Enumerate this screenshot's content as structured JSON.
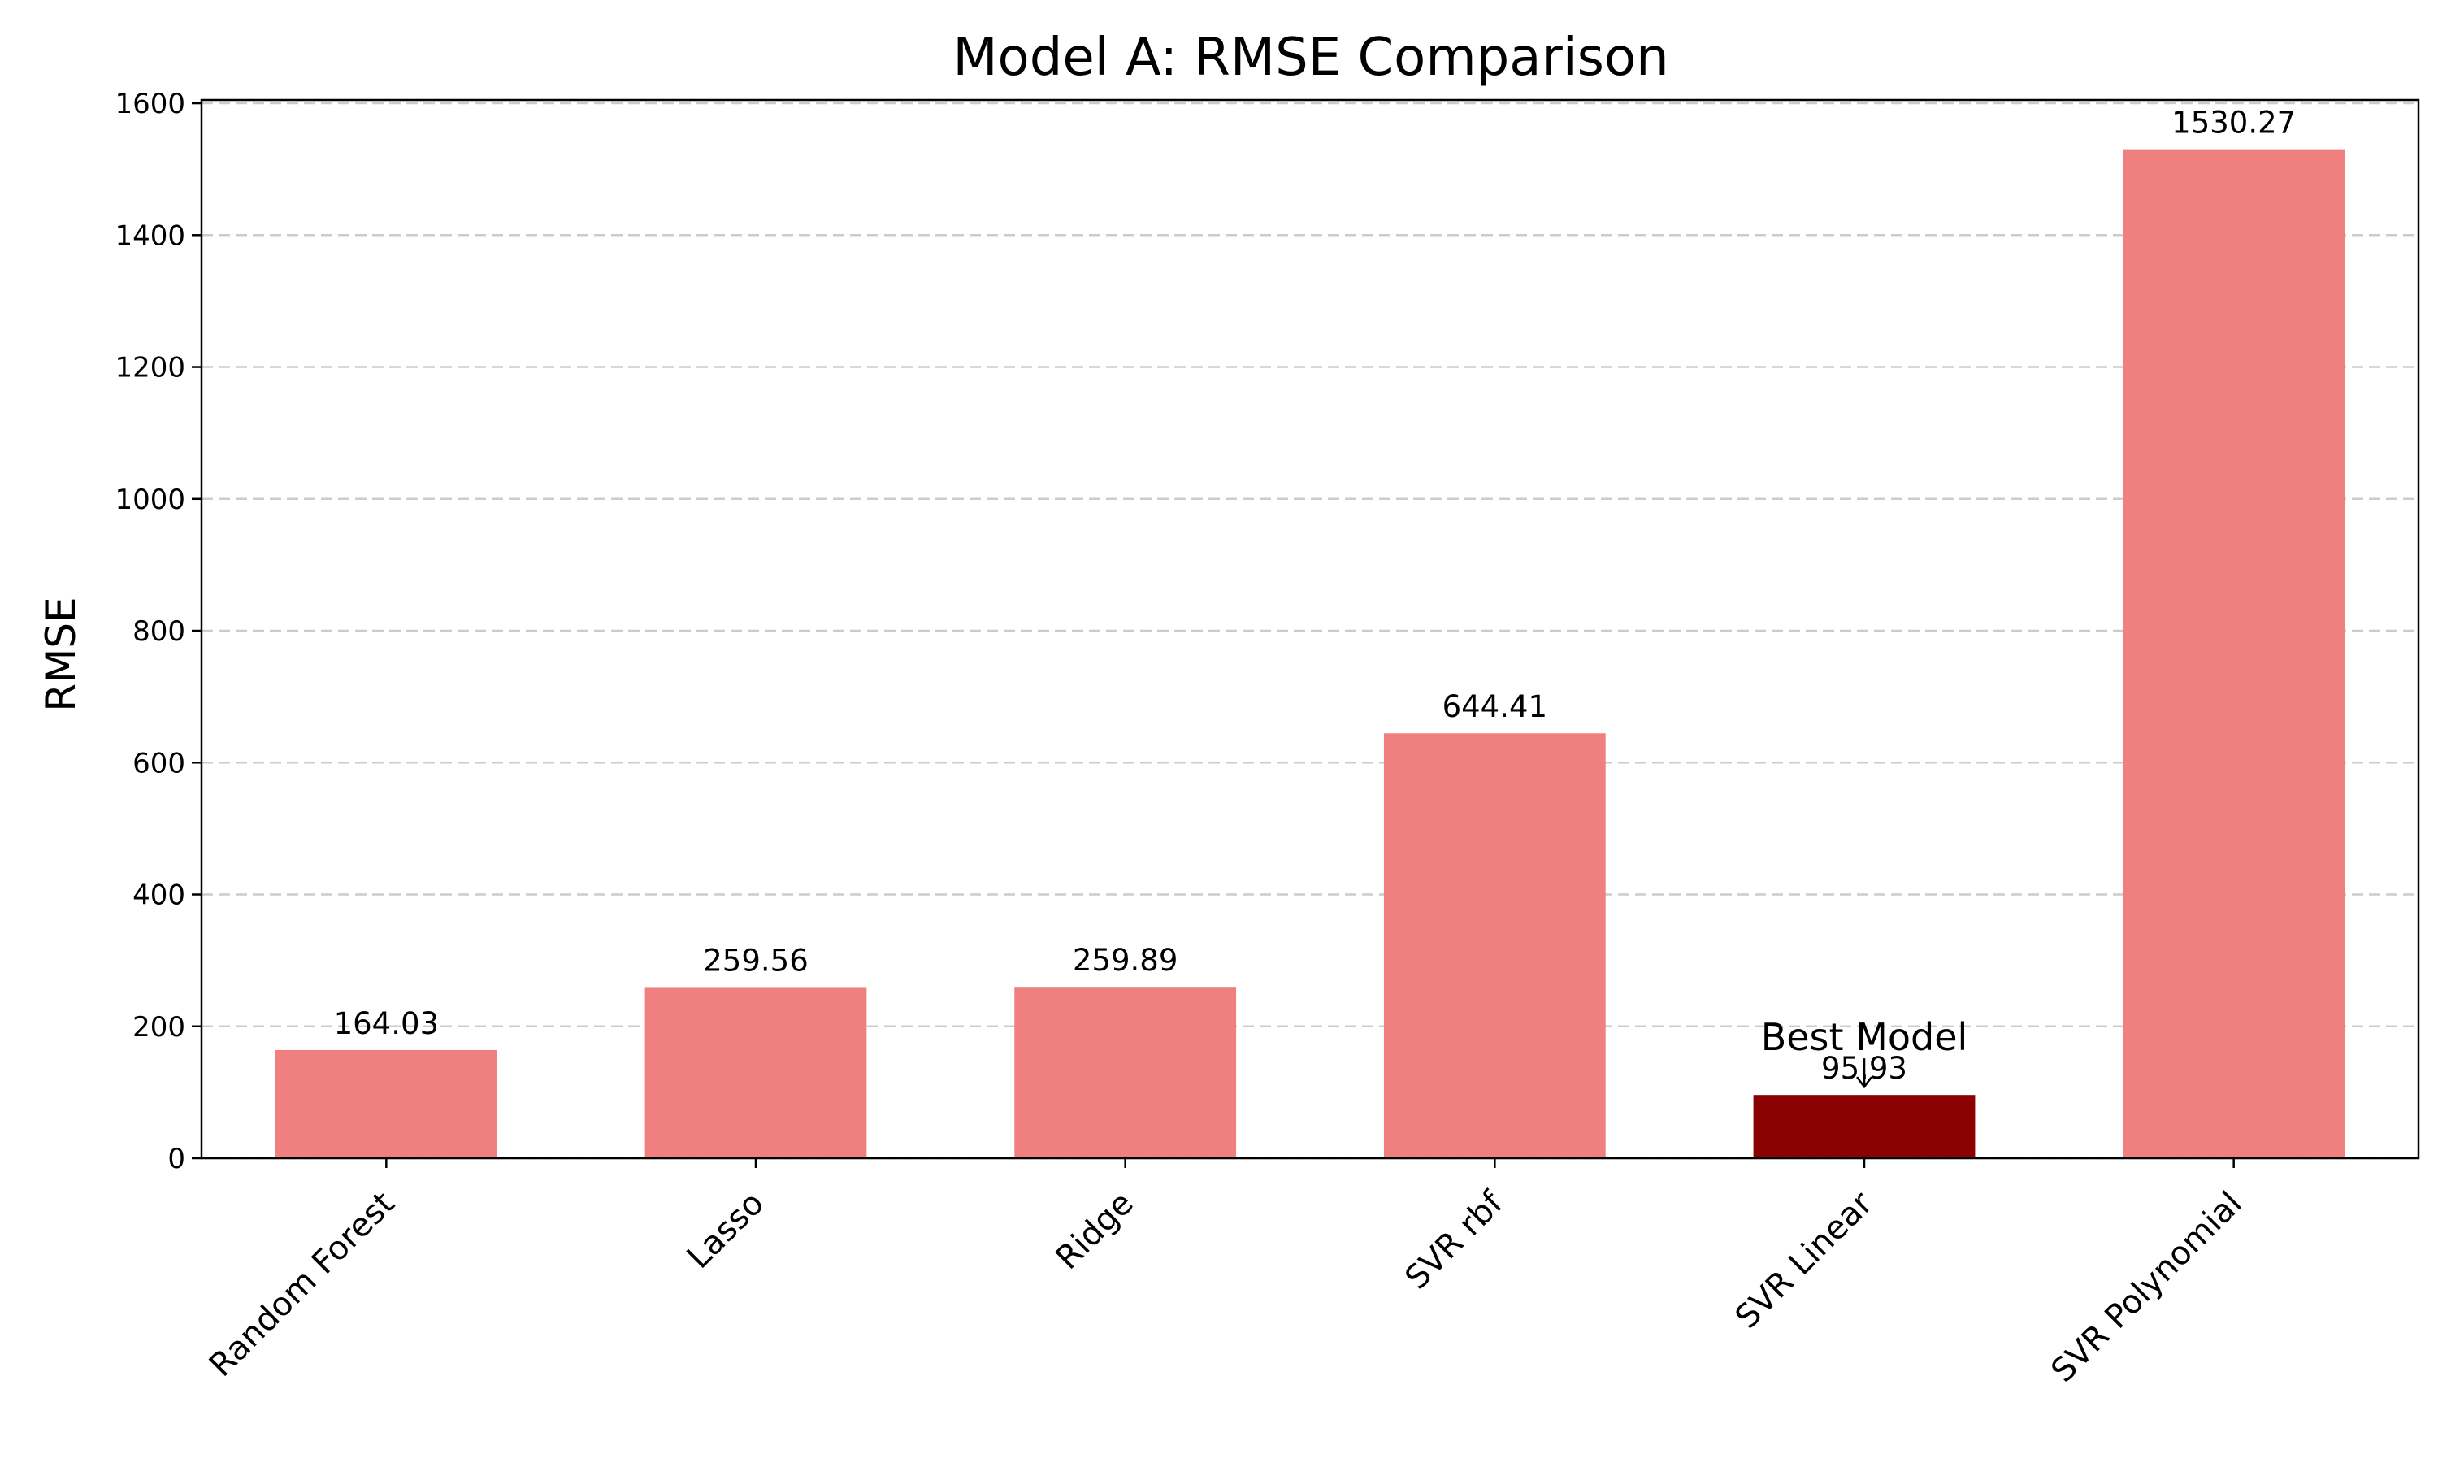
{
  "chart_data": {
    "type": "bar",
    "title": "Model A: RMSE Comparison",
    "xlabel": "",
    "ylabel": "RMSE",
    "categories": [
      "Random Forest",
      "Lasso",
      "Ridge",
      "SVR rbf",
      "SVR Linear",
      "SVR Polynomial"
    ],
    "values": [
      164.03,
      259.56,
      259.89,
      644.41,
      95.93,
      1530.27
    ],
    "value_labels": [
      "164.03",
      "259.56",
      "259.89",
      "644.41",
      "95.93",
      "1530.27"
    ],
    "ylim": [
      0,
      1605
    ],
    "yticks": [
      0,
      200,
      400,
      600,
      800,
      1000,
      1200,
      1400,
      1600
    ],
    "grid": "y-dashed",
    "colors": {
      "default": "#f08080",
      "highlight": "#8b0000"
    },
    "highlight_index": 4,
    "annotation": {
      "text": "Best Model",
      "category": "SVR Linear"
    }
  }
}
